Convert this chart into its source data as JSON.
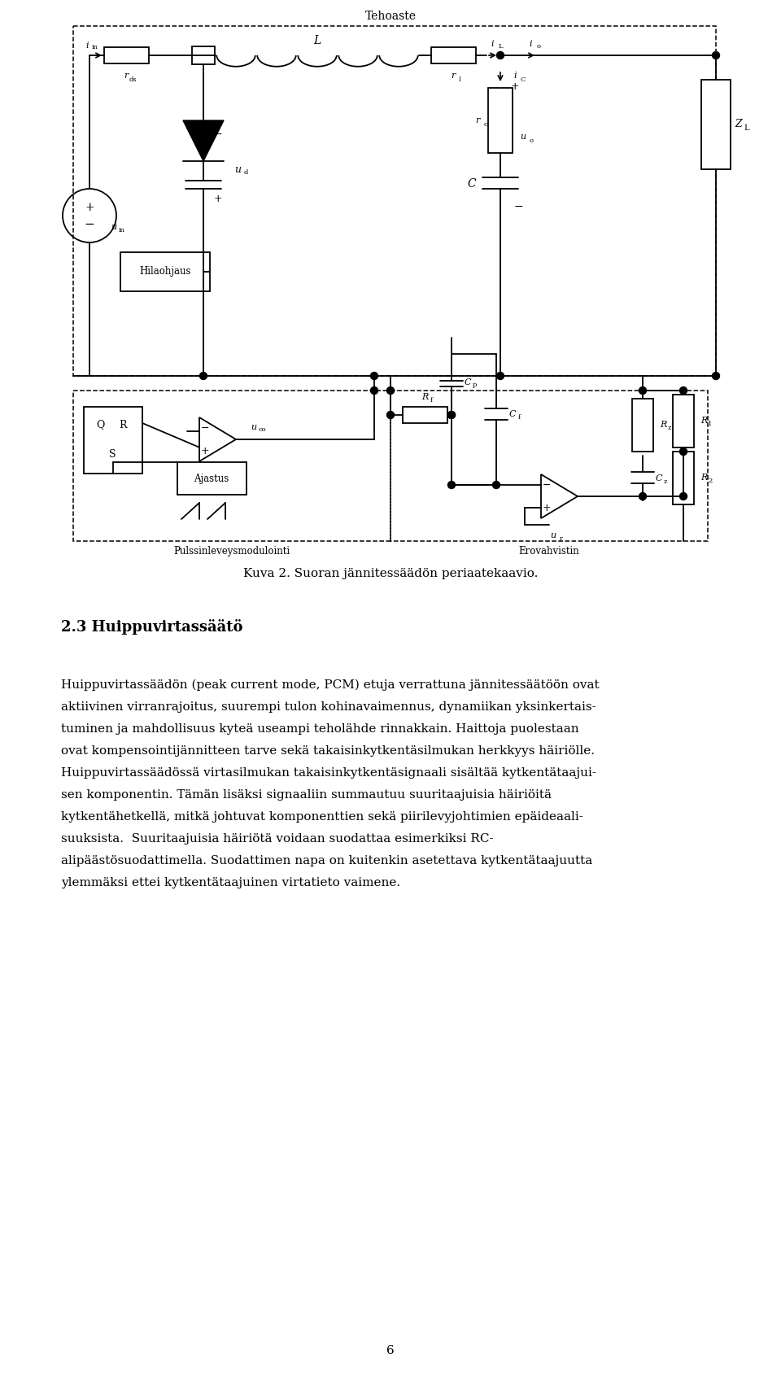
{
  "page_width": 9.6,
  "page_height": 17.01,
  "bg_color": "#ffffff",
  "caption": "Kuva 2. Suoran jännitessäädön periaatekaavio.",
  "section_heading": "2.3 Huippuvirtassäätö",
  "body_lines": [
    "Huippuvirtassäädön (peak current mode, PCM) etuja verrattuna jännitessäätöön ovat",
    "aktiivinen virranrajoitus, suurempi tulon kohinavaimennus, dynamiikan yksinkertais-",
    "tuminen ja mahdollisuus kyteä useampi teholähde rinnakkain. Haittoja puolestaan",
    "ovat kompensointijännitteen tarve sekä takaisinkytkentäsilmukan herkkyys häiriölle.",
    "Huippuvirtassäädössä virtasilmukan takaisinkytkentäsignaali sisältää kytkentätaajui-",
    "sen komponentin. Tämän lisäksi signaaliin summautuu suuritaajuisia häiriöitä",
    "kytkentähetkellä, mitkä johtuvat komponenttien sekä piirilevyjohtimien epäideaali-",
    "suuksista.  Suuritaajuisia häiriötä voidaan suodattaa esimerkiksi RC-",
    "alipäästösuodattimella. Suodattimen napa on kuitenkin asetettava kytkentätaajuutta",
    "ylemmäksi ettei kytkentätaajuinen virtatieto vaimene."
  ],
  "page_number": "6"
}
